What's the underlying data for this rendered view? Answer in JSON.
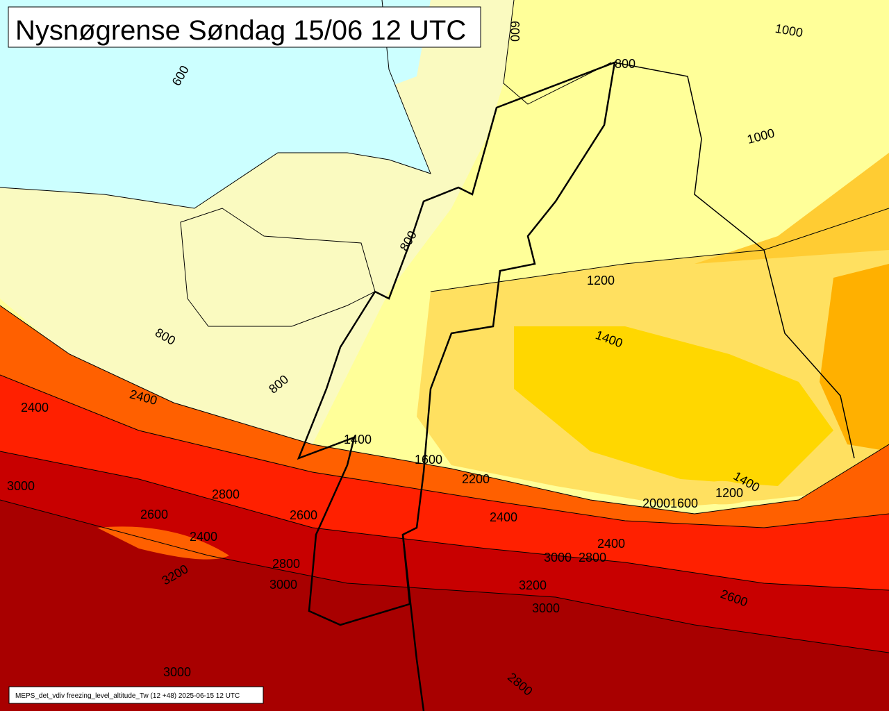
{
  "title": "Nysnøgrense Søndag 15/06 12 UTC",
  "footer": "MEPS_det_vdiv freezing_level_altitude_Tw (12 +48) 2025-06-15 12 UTC",
  "contour_labels": [
    "600",
    "600",
    "1000",
    "1000",
    "800",
    "800",
    "800",
    "800",
    "1200",
    "1400",
    "2400",
    "2400",
    "3000",
    "2800",
    "2600",
    "2600",
    "2400",
    "2400",
    "2200",
    "1600",
    "1400",
    "2400",
    "3000",
    "2800",
    "2800",
    "3000",
    "3200",
    "3200",
    "3000",
    "2600",
    "3000",
    "2800",
    "1400",
    "1200",
    "2000",
    "1600"
  ]
}
